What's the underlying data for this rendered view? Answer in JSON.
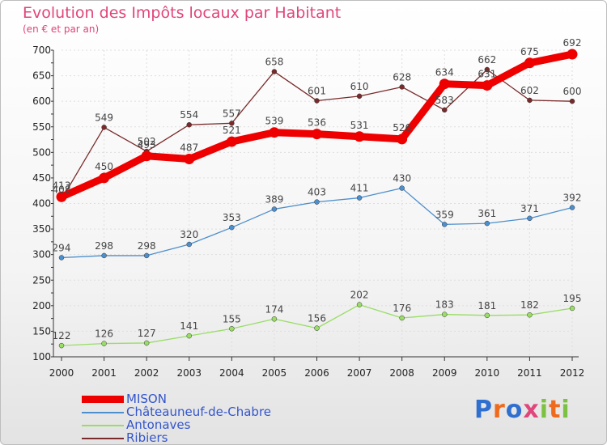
{
  "title": "Evolution des Impôts locaux par Habitant",
  "subtitle": "(en € et par an)",
  "logo": {
    "text": "Proxiti",
    "letter_colors": [
      "#2f6fcf",
      "#ef6a1c",
      "#2f6fcf",
      "#e0457b",
      "#7dc142",
      "#ef6a1c",
      "#7dc142"
    ]
  },
  "chart_data": {
    "type": "line",
    "x": [
      "2000",
      "2001",
      "2002",
      "2003",
      "2004",
      "2005",
      "2006",
      "2007",
      "2008",
      "2009",
      "2010",
      "2011",
      "2012"
    ],
    "ylim": [
      100,
      700
    ],
    "yticks": [
      "100",
      "150",
      "200",
      "250",
      "300",
      "350",
      "400",
      "450",
      "500",
      "550",
      "600",
      "650",
      "700"
    ],
    "grid": true,
    "legend_position": "bottom-left",
    "series": [
      {
        "name": "MISON",
        "color": "#ee0000",
        "values": [
          413,
          450,
          493,
          487,
          521,
          539,
          536,
          531,
          526,
          634,
          631,
          675,
          692
        ]
      },
      {
        "name": "Châteauneuf-de-Chabre",
        "color": "#4d8fcc",
        "values": [
          294,
          298,
          298,
          320,
          353,
          389,
          403,
          411,
          430,
          359,
          361,
          371,
          392
        ]
      },
      {
        "name": "Antonaves",
        "color": "#99dd66",
        "values": [
          122,
          126,
          127,
          141,
          155,
          174,
          156,
          202,
          176,
          183,
          181,
          182,
          195
        ]
      },
      {
        "name": "Ribiers",
        "color": "#7a2a2a",
        "values": [
          408,
          549,
          502,
          554,
          557,
          658,
          601,
          610,
          628,
          583,
          662,
          602,
          600
        ]
      }
    ]
  }
}
